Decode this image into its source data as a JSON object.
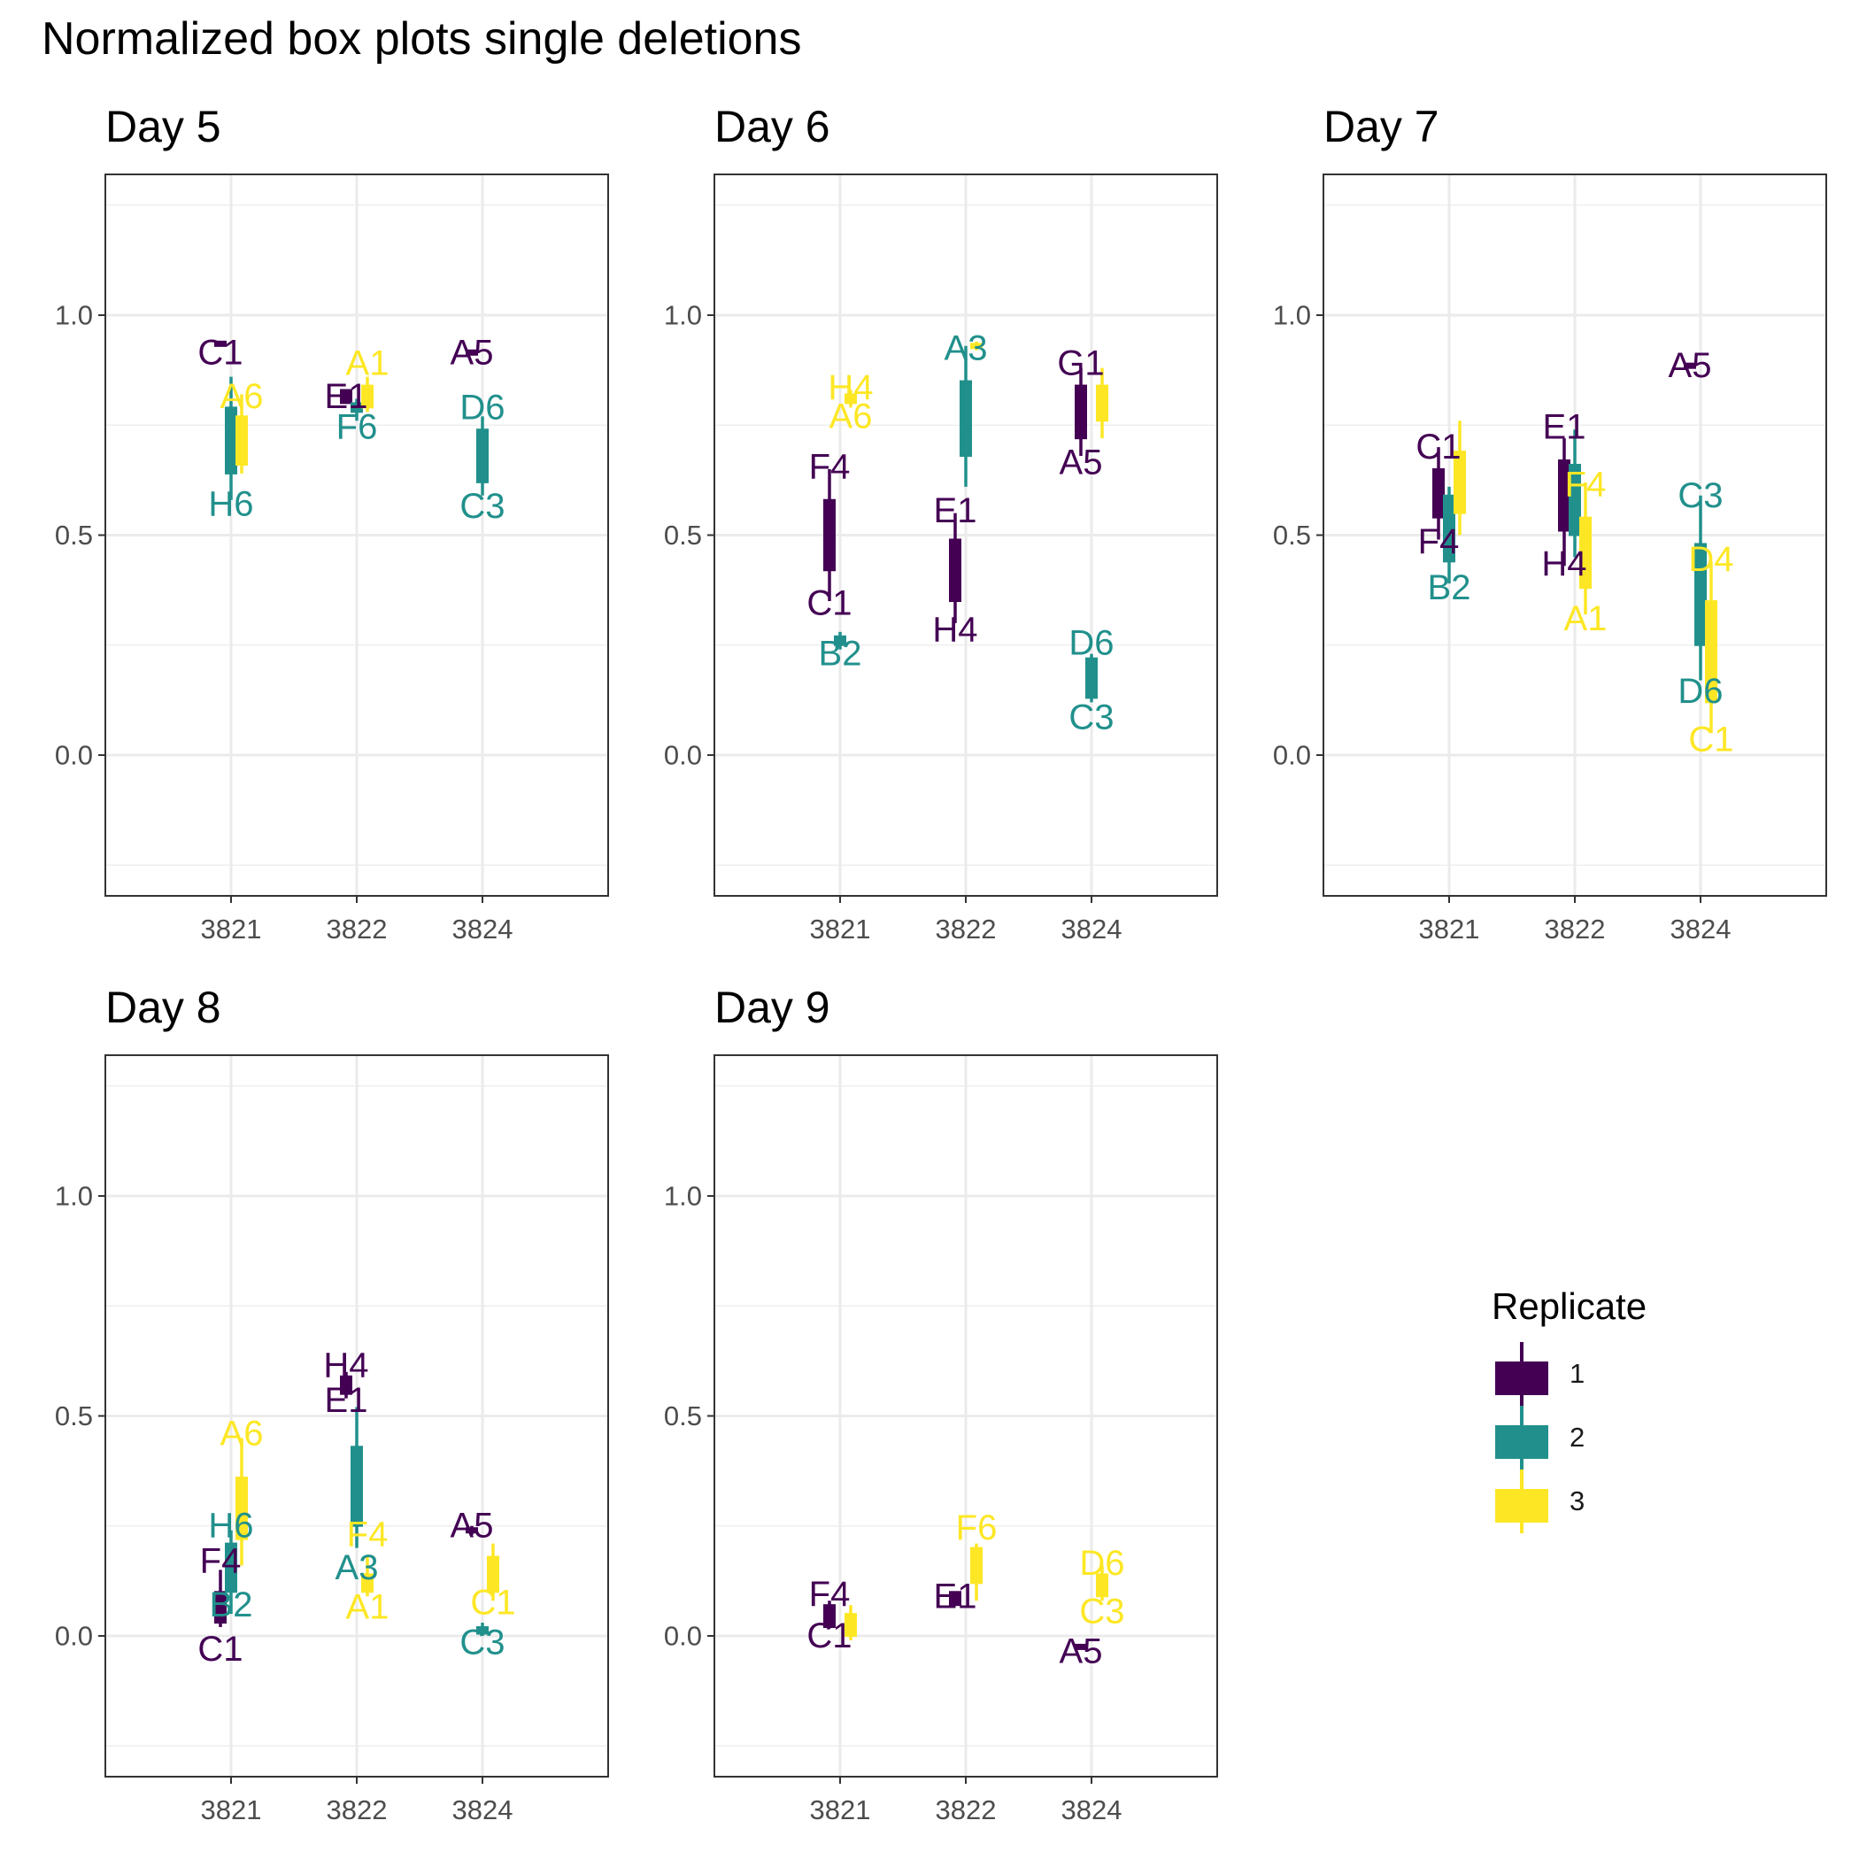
{
  "title": "Normalized box plots single deletions",
  "colors": {
    "1": "#440154",
    "2": "#21908C",
    "3": "#FDE725"
  },
  "legend": {
    "title": "Replicate",
    "items": [
      {
        "label": "1",
        "color": "#440154"
      },
      {
        "label": "2",
        "color": "#21908C"
      },
      {
        "label": "3",
        "color": "#FDE725"
      }
    ]
  },
  "chart_data": {
    "type": "box",
    "categories": [
      "3821",
      "3822",
      "3824"
    ],
    "ylim": [
      -0.32,
      1.32
    ],
    "yticks": [
      0.0,
      0.5,
      1.0
    ],
    "ytick_labels": [
      "0.0",
      "0.5",
      "1.0"
    ],
    "grid": true,
    "legend_position": "right",
    "facets": [
      {
        "title": "Day 5",
        "boxes": [
          {
            "cat": "3821",
            "rep": "1",
            "min": 0.93,
            "q1": 0.93,
            "median": 0.935,
            "q3": 0.94,
            "max": 0.94
          },
          {
            "cat": "3821",
            "rep": "2",
            "min": 0.58,
            "q1": 0.64,
            "median": 0.72,
            "q3": 0.79,
            "max": 0.86
          },
          {
            "cat": "3821",
            "rep": "3",
            "min": 0.64,
            "q1": 0.66,
            "median": 0.73,
            "q3": 0.77,
            "max": 0.82
          },
          {
            "cat": "3822",
            "rep": "1",
            "min": 0.8,
            "q1": 0.8,
            "median": 0.815,
            "q3": 0.83,
            "max": 0.83
          },
          {
            "cat": "3822",
            "rep": "2",
            "min": 0.76,
            "q1": 0.78,
            "median": 0.79,
            "q3": 0.8,
            "max": 0.81
          },
          {
            "cat": "3822",
            "rep": "3",
            "min": 0.78,
            "q1": 0.79,
            "median": 0.82,
            "q3": 0.84,
            "max": 0.86
          },
          {
            "cat": "3824",
            "rep": "1",
            "min": 0.91,
            "q1": 0.91,
            "median": 0.915,
            "q3": 0.92,
            "max": 0.92
          },
          {
            "cat": "3824",
            "rep": "2",
            "min": 0.59,
            "q1": 0.62,
            "median": 0.69,
            "q3": 0.74,
            "max": 0.77
          }
        ],
        "labels": [
          {
            "cat": "3821",
            "rep": "1",
            "y": 0.915,
            "text": "C1"
          },
          {
            "cat": "3821",
            "rep": "3",
            "y": 0.815,
            "text": "A6"
          },
          {
            "cat": "3821",
            "rep": "2",
            "y": 0.57,
            "text": "H6"
          },
          {
            "cat": "3822",
            "rep": "3",
            "y": 0.89,
            "text": "A1"
          },
          {
            "cat": "3822",
            "rep": "1",
            "y": 0.815,
            "text": "E1"
          },
          {
            "cat": "3822",
            "rep": "2",
            "y": 0.745,
            "text": "F6"
          },
          {
            "cat": "3824",
            "rep": "1",
            "y": 0.915,
            "text": "A5"
          },
          {
            "cat": "3824",
            "rep": "2",
            "y": 0.79,
            "text": "D6"
          },
          {
            "cat": "3824",
            "rep": "2",
            "y": 0.565,
            "text": "C3"
          }
        ]
      },
      {
        "title": "Day 6",
        "boxes": [
          {
            "cat": "3821",
            "rep": "1",
            "min": 0.35,
            "q1": 0.42,
            "median": 0.5,
            "q3": 0.58,
            "max": 0.65
          },
          {
            "cat": "3821",
            "rep": "2",
            "min": 0.24,
            "q1": 0.25,
            "median": 0.26,
            "q3": 0.27,
            "max": 0.28
          },
          {
            "cat": "3821",
            "rep": "3",
            "min": 0.79,
            "q1": 0.8,
            "median": 0.81,
            "q3": 0.82,
            "max": 0.83
          },
          {
            "cat": "3822",
            "rep": "1",
            "min": 0.3,
            "q1": 0.35,
            "median": 0.42,
            "q3": 0.49,
            "max": 0.55
          },
          {
            "cat": "3822",
            "rep": "2",
            "min": 0.61,
            "q1": 0.68,
            "median": 0.76,
            "q3": 0.85,
            "max": 0.93
          },
          {
            "cat": "3822",
            "rep": "3",
            "min": 0.92,
            "q1": 0.925,
            "median": 0.93,
            "q3": 0.935,
            "max": 0.94
          },
          {
            "cat": "3824",
            "rep": "1",
            "min": 0.68,
            "q1": 0.72,
            "median": 0.78,
            "q3": 0.84,
            "max": 0.88
          },
          {
            "cat": "3824",
            "rep": "2",
            "min": 0.12,
            "q1": 0.13,
            "median": 0.17,
            "q3": 0.22,
            "max": 0.23
          },
          {
            "cat": "3824",
            "rep": "3",
            "min": 0.72,
            "q1": 0.76,
            "median": 0.8,
            "q3": 0.84,
            "max": 0.88
          }
        ],
        "labels": [
          {
            "cat": "3821",
            "rep": "3",
            "y": 0.835,
            "text": "H4"
          },
          {
            "cat": "3821",
            "rep": "3",
            "y": 0.77,
            "text": "A6"
          },
          {
            "cat": "3821",
            "rep": "1",
            "y": 0.655,
            "text": "F4"
          },
          {
            "cat": "3821",
            "rep": "1",
            "y": 0.345,
            "text": "C1"
          },
          {
            "cat": "3821",
            "rep": "2",
            "y": 0.23,
            "text": "B2"
          },
          {
            "cat": "3822",
            "rep": "2",
            "y": 0.925,
            "text": "A3"
          },
          {
            "cat": "3822",
            "rep": "1",
            "y": 0.555,
            "text": "E1"
          },
          {
            "cat": "3822",
            "rep": "1",
            "y": 0.285,
            "text": "H4"
          },
          {
            "cat": "3824",
            "rep": "1",
            "y": 0.89,
            "text": "G1"
          },
          {
            "cat": "3824",
            "rep": "1",
            "y": 0.665,
            "text": "A5"
          },
          {
            "cat": "3824",
            "rep": "2",
            "y": 0.255,
            "text": "D6"
          },
          {
            "cat": "3824",
            "rep": "2",
            "y": 0.085,
            "text": "C3"
          }
        ]
      },
      {
        "title": "Day 7",
        "boxes": [
          {
            "cat": "3821",
            "rep": "1",
            "min": 0.49,
            "q1": 0.54,
            "median": 0.6,
            "q3": 0.65,
            "max": 0.7
          },
          {
            "cat": "3821",
            "rep": "2",
            "min": 0.39,
            "q1": 0.44,
            "median": 0.5,
            "q3": 0.59,
            "max": 0.61
          },
          {
            "cat": "3821",
            "rep": "3",
            "min": 0.5,
            "q1": 0.55,
            "median": 0.63,
            "q3": 0.69,
            "max": 0.76
          },
          {
            "cat": "3822",
            "rep": "1",
            "min": 0.43,
            "q1": 0.51,
            "median": 0.58,
            "q3": 0.67,
            "max": 0.72
          },
          {
            "cat": "3822",
            "rep": "2",
            "min": 0.45,
            "q1": 0.5,
            "median": 0.58,
            "q3": 0.66,
            "max": 0.74
          },
          {
            "cat": "3822",
            "rep": "3",
            "min": 0.32,
            "q1": 0.38,
            "median": 0.45,
            "q3": 0.54,
            "max": 0.62
          },
          {
            "cat": "3824",
            "rep": "1",
            "min": 0.88,
            "q1": 0.88,
            "median": 0.885,
            "q3": 0.89,
            "max": 0.89
          },
          {
            "cat": "3824",
            "rep": "2",
            "min": 0.17,
            "q1": 0.25,
            "median": 0.35,
            "q3": 0.48,
            "max": 0.59
          },
          {
            "cat": "3824",
            "rep": "3",
            "min": 0.05,
            "q1": 0.12,
            "median": 0.2,
            "q3": 0.35,
            "max": 0.44
          }
        ],
        "labels": [
          {
            "cat": "3824",
            "rep": "1",
            "y": 0.885,
            "text": "A5"
          },
          {
            "cat": "3821",
            "rep": "1",
            "y": 0.7,
            "text": "C1"
          },
          {
            "cat": "3821",
            "rep": "1",
            "y": 0.485,
            "text": "F4"
          },
          {
            "cat": "3821",
            "rep": "2",
            "y": 0.38,
            "text": "B2"
          },
          {
            "cat": "3822",
            "rep": "1",
            "y": 0.745,
            "text": "E1"
          },
          {
            "cat": "3822",
            "rep": "3",
            "y": 0.615,
            "text": "F4"
          },
          {
            "cat": "3822",
            "rep": "1",
            "y": 0.435,
            "text": "H4"
          },
          {
            "cat": "3822",
            "rep": "3",
            "y": 0.31,
            "text": "A1"
          },
          {
            "cat": "3824",
            "rep": "2",
            "y": 0.59,
            "text": "C3"
          },
          {
            "cat": "3824",
            "rep": "3",
            "y": 0.445,
            "text": "D4"
          },
          {
            "cat": "3824",
            "rep": "2",
            "y": 0.145,
            "text": "D6"
          },
          {
            "cat": "3824",
            "rep": "3",
            "y": 0.035,
            "text": "C1"
          }
        ]
      },
      {
        "title": "Day 8",
        "boxes": [
          {
            "cat": "3821",
            "rep": "1",
            "min": 0.02,
            "q1": 0.03,
            "median": 0.06,
            "q3": 0.1,
            "max": 0.15
          },
          {
            "cat": "3821",
            "rep": "2",
            "min": 0.05,
            "q1": 0.1,
            "median": 0.16,
            "q3": 0.21,
            "max": 0.24
          },
          {
            "cat": "3821",
            "rep": "3",
            "min": 0.16,
            "q1": 0.22,
            "median": 0.3,
            "q3": 0.36,
            "max": 0.45
          },
          {
            "cat": "3822",
            "rep": "1",
            "min": 0.54,
            "q1": 0.55,
            "median": 0.57,
            "q3": 0.59,
            "max": 0.6
          },
          {
            "cat": "3822",
            "rep": "2",
            "min": 0.2,
            "q1": 0.25,
            "median": 0.33,
            "q3": 0.43,
            "max": 0.52
          },
          {
            "cat": "3822",
            "rep": "3",
            "min": 0.09,
            "q1": 0.1,
            "median": 0.12,
            "q3": 0.14,
            "max": 0.18
          },
          {
            "cat": "3824",
            "rep": "1",
            "min": 0.23,
            "q1": 0.235,
            "median": 0.24,
            "q3": 0.245,
            "max": 0.25
          },
          {
            "cat": "3824",
            "rep": "2",
            "min": 0.0,
            "q1": 0.005,
            "median": 0.01,
            "q3": 0.02,
            "max": 0.03
          },
          {
            "cat": "3824",
            "rep": "3",
            "min": 0.08,
            "q1": 0.1,
            "median": 0.14,
            "q3": 0.18,
            "max": 0.21
          }
        ],
        "labels": [
          {
            "cat": "3822",
            "rep": "1",
            "y": 0.615,
            "text": "H4"
          },
          {
            "cat": "3822",
            "rep": "1",
            "y": 0.535,
            "text": "E1"
          },
          {
            "cat": "3821",
            "rep": "3",
            "y": 0.46,
            "text": "A6"
          },
          {
            "cat": "3821",
            "rep": "2",
            "y": 0.25,
            "text": "H6"
          },
          {
            "cat": "3821",
            "rep": "1",
            "y": 0.17,
            "text": "F4"
          },
          {
            "cat": "3821",
            "rep": "2",
            "y": 0.07,
            "text": "B2"
          },
          {
            "cat": "3821",
            "rep": "1",
            "y": -0.03,
            "text": "C1"
          },
          {
            "cat": "3822",
            "rep": "3",
            "y": 0.23,
            "text": "F4"
          },
          {
            "cat": "3822",
            "rep": "2",
            "y": 0.155,
            "text": "A3"
          },
          {
            "cat": "3822",
            "rep": "3",
            "y": 0.065,
            "text": "A1"
          },
          {
            "cat": "3824",
            "rep": "1",
            "y": 0.25,
            "text": "A5"
          },
          {
            "cat": "3824",
            "rep": "3",
            "y": 0.075,
            "text": "C1"
          },
          {
            "cat": "3824",
            "rep": "2",
            "y": -0.015,
            "text": "C3"
          }
        ]
      },
      {
        "title": "Day 9",
        "boxes": [
          {
            "cat": "3821",
            "rep": "1",
            "min": 0.02,
            "q1": 0.02,
            "median": 0.04,
            "q3": 0.07,
            "max": 0.08
          },
          {
            "cat": "3821",
            "rep": "3",
            "min": -0.01,
            "q1": 0.0,
            "median": 0.02,
            "q3": 0.05,
            "max": 0.07
          },
          {
            "cat": "3822",
            "rep": "1",
            "min": 0.07,
            "q1": 0.07,
            "median": 0.08,
            "q3": 0.1,
            "max": 0.1
          },
          {
            "cat": "3822",
            "rep": "3",
            "min": 0.08,
            "q1": 0.12,
            "median": 0.15,
            "q3": 0.2,
            "max": 0.21
          },
          {
            "cat": "3824",
            "rep": "1",
            "min": -0.03,
            "q1": -0.03,
            "median": -0.025,
            "q3": -0.02,
            "max": -0.02
          },
          {
            "cat": "3824",
            "rep": "3",
            "min": 0.08,
            "q1": 0.09,
            "median": 0.11,
            "q3": 0.14,
            "max": 0.16
          }
        ],
        "labels": [
          {
            "cat": "3821",
            "rep": "1",
            "y": 0.095,
            "text": "F4"
          },
          {
            "cat": "3821",
            "rep": "1",
            "y": 0.0,
            "text": "C1"
          },
          {
            "cat": "3822",
            "rep": "3",
            "y": 0.245,
            "text": "F6"
          },
          {
            "cat": "3822",
            "rep": "1",
            "y": 0.09,
            "text": "E1"
          },
          {
            "cat": "3824",
            "rep": "3",
            "y": 0.165,
            "text": "D6"
          },
          {
            "cat": "3824",
            "rep": "3",
            "y": 0.055,
            "text": "C3"
          },
          {
            "cat": "3824",
            "rep": "1",
            "y": -0.035,
            "text": "A5"
          }
        ]
      }
    ]
  }
}
